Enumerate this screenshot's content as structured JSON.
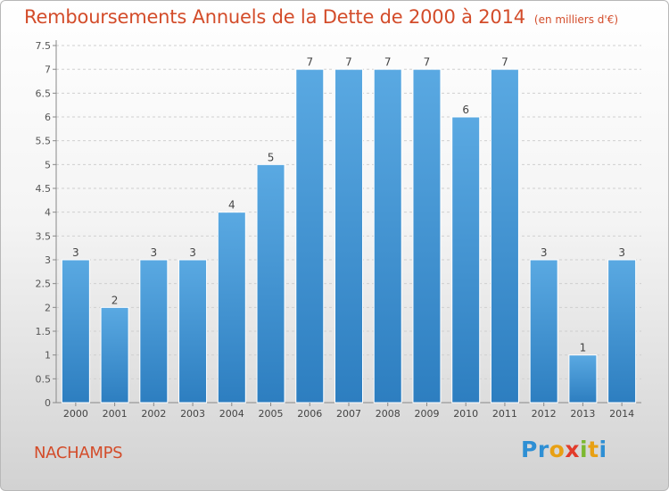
{
  "header": {
    "title": "Remboursements Annuels de la Dette de 2000 à 2014",
    "unit": "(en milliers d'€)"
  },
  "footer": {
    "commune": "NACHAMPS",
    "logo_letters": [
      "P",
      "r",
      "o",
      "x",
      "i",
      "t",
      "i"
    ],
    "logo_colors": [
      "#2e8fd4",
      "#2e8fd4",
      "#e8a013",
      "#e23b2b",
      "#7cb82f",
      "#e8a013",
      "#2e8fd4"
    ]
  },
  "colors": {
    "bar": "#5aa9e2",
    "bar_dark": "#2d7ec0",
    "title": "#d34c2a",
    "grid": "#cfcfcf"
  },
  "chart_data": {
    "type": "bar",
    "categories": [
      "2000",
      "2001",
      "2002",
      "2003",
      "2004",
      "2005",
      "2006",
      "2007",
      "2008",
      "2009",
      "2010",
      "2011",
      "2012",
      "2013",
      "2014"
    ],
    "values": [
      3,
      2,
      3,
      3,
      4,
      5,
      7,
      7,
      7,
      7,
      6,
      7,
      3,
      1,
      3
    ],
    "yticks": [
      "0",
      "0.5",
      "1",
      "1.5",
      "2",
      "2.5",
      "3",
      "3.5",
      "4",
      "4.5",
      "5",
      "5.5",
      "6",
      "6.5",
      "7",
      "7.5"
    ],
    "ylim": [
      0,
      7.5
    ],
    "grid": true
  }
}
